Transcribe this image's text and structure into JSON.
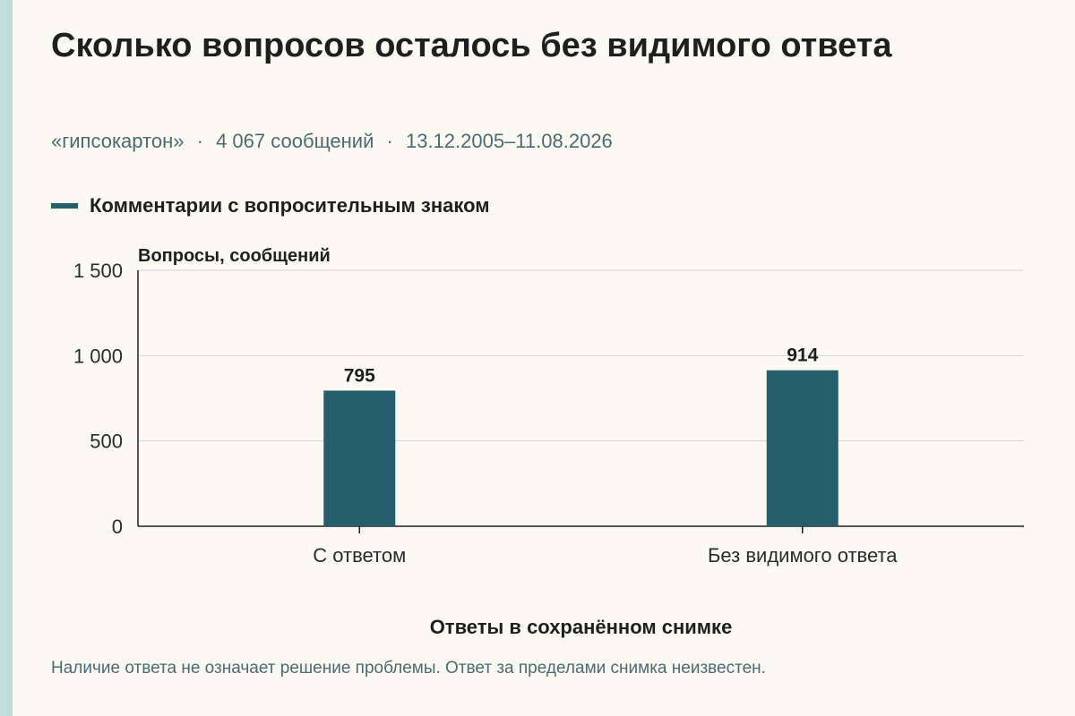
{
  "title": "Сколько вопросов осталось без видимого ответа",
  "subtitle": {
    "source": "«гипсокартон»",
    "count": "4 067 сообщений",
    "period": "13.12.2005–11.08.2026",
    "separator": "·"
  },
  "footnote": "Наличие ответа не означает решение проблемы. Ответ за пределами снимка неизвестен.",
  "colors": {
    "accent": "#265f6c",
    "background": "#fbfaf2",
    "side_strip": "#c1dcdc"
  },
  "chart_data": {
    "type": "bar",
    "categories": [
      "С ответом",
      "Без видимого ответа"
    ],
    "series": [
      {
        "name": "Комментарии с вопросительным знаком",
        "values": [
          795,
          914
        ],
        "color": "#265f6c"
      }
    ],
    "data_labels": [
      "795",
      "914"
    ],
    "xlabel": "Ответы в сохранённом снимке",
    "ylabel": "Вопросы, сообщений",
    "ylim": [
      0,
      1500
    ],
    "yticks": [
      0,
      500,
      1000,
      1500
    ],
    "ytick_labels": [
      "0",
      "500",
      "1 000",
      "1 500"
    ],
    "grid": true,
    "legend": "top-left"
  }
}
